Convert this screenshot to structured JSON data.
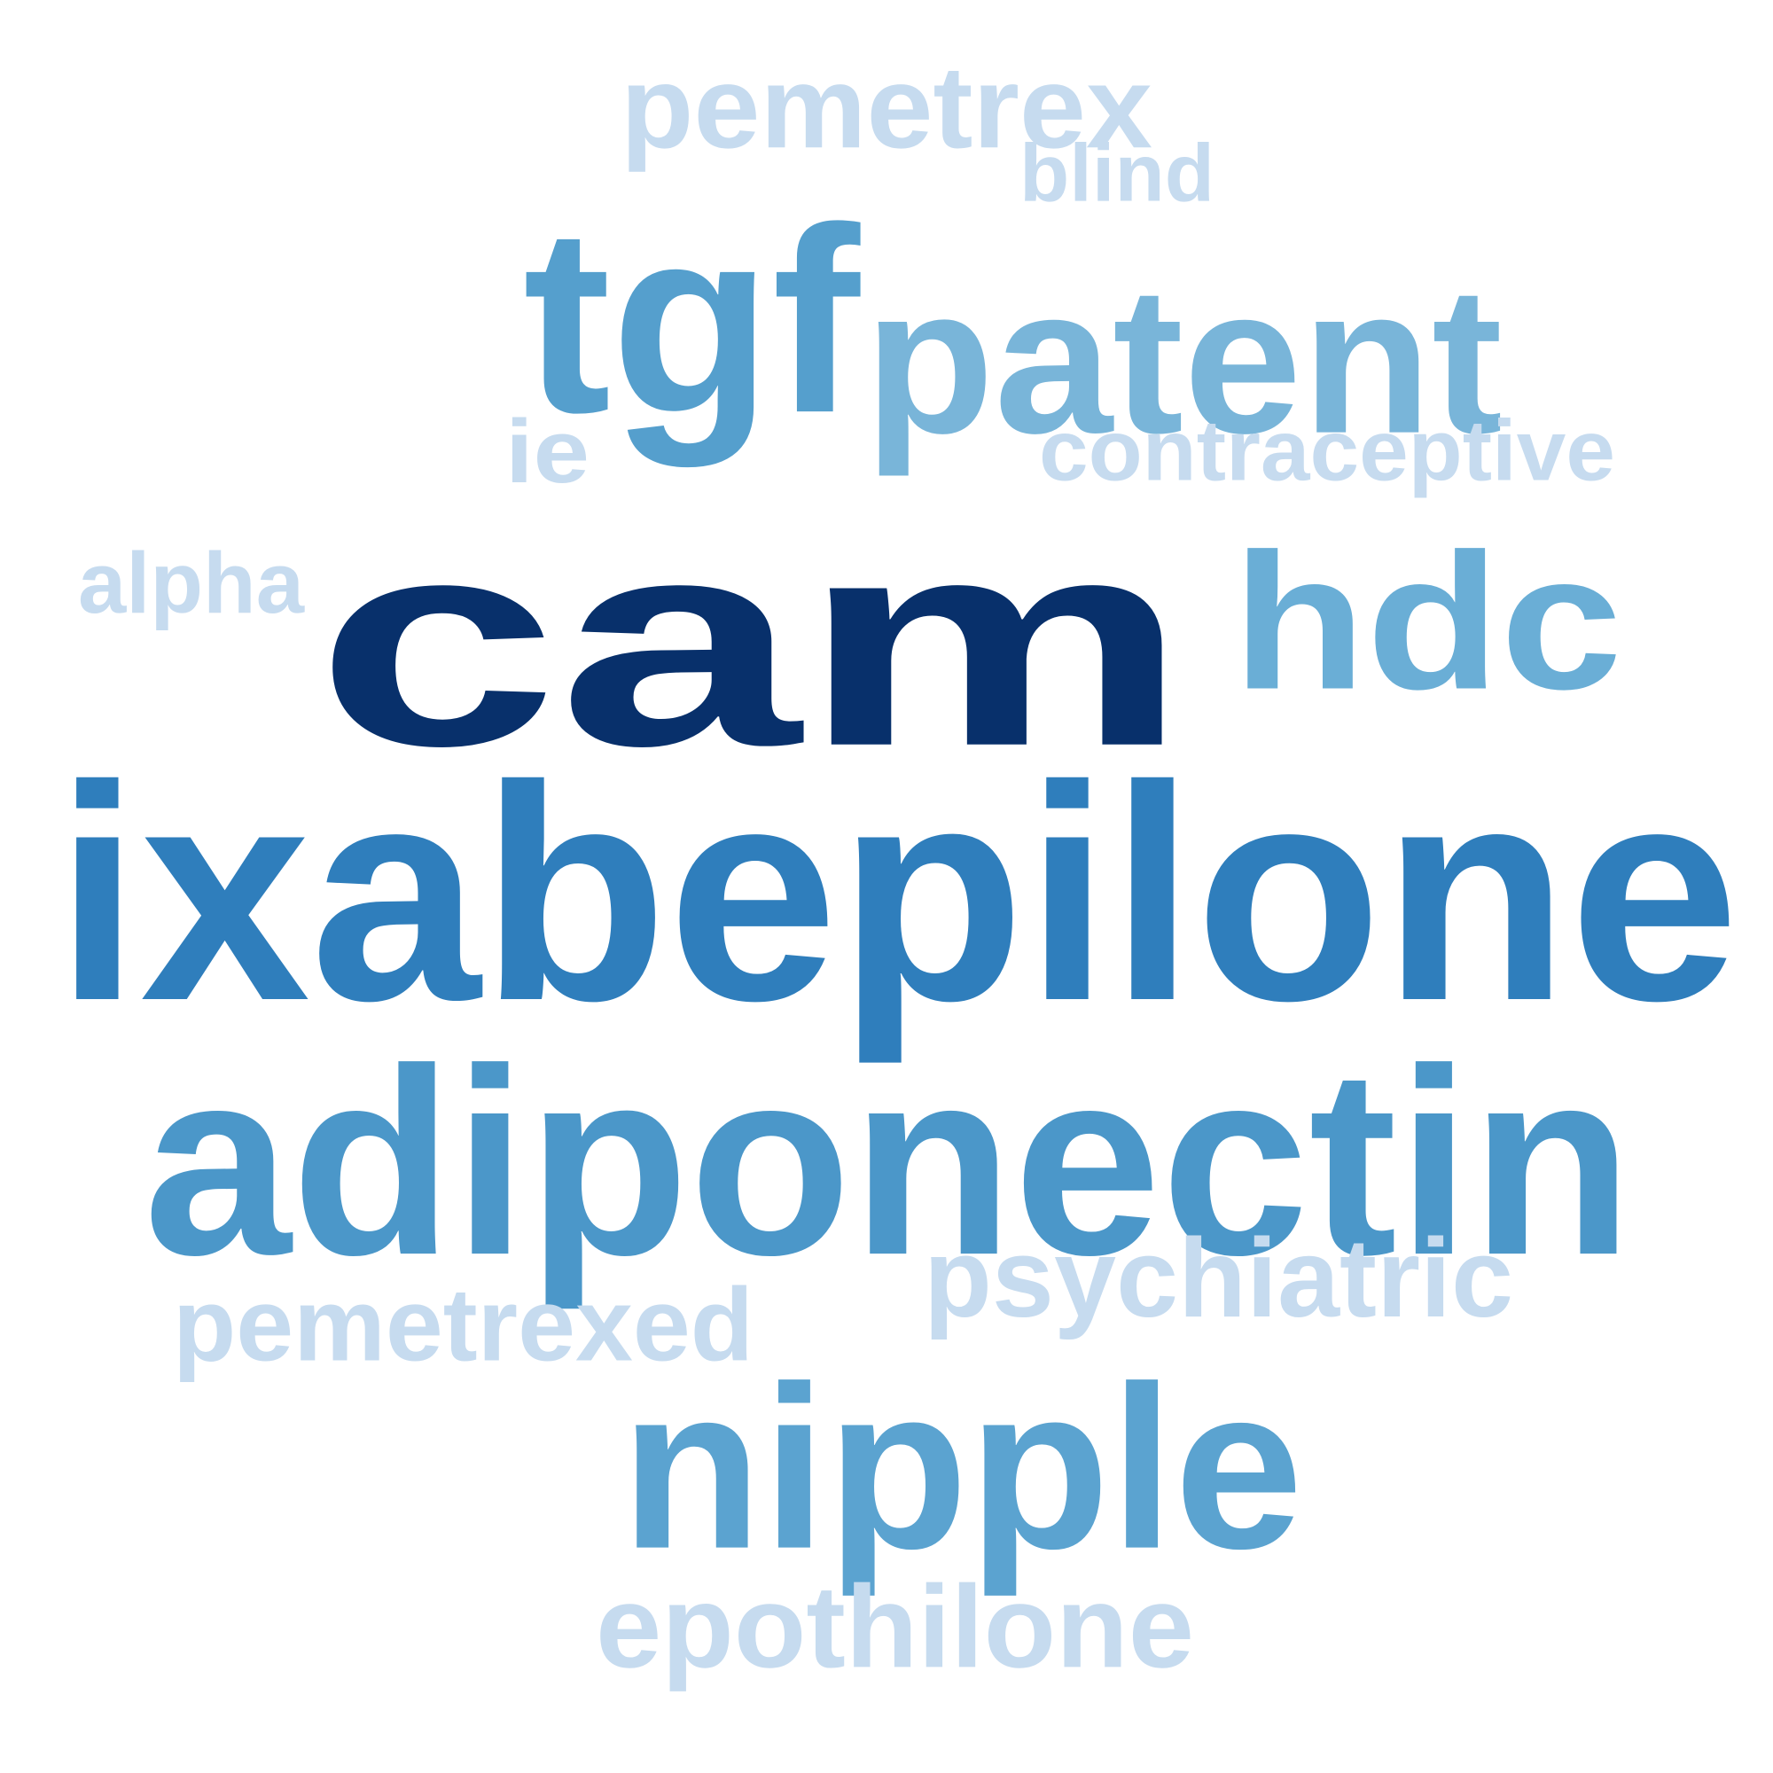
{
  "word_cloud": {
    "words": [
      {
        "text": "cam",
        "color": "#08306b"
      },
      {
        "text": "ixabepilone",
        "color": "#2f7ebc"
      },
      {
        "text": "adiponectin",
        "color": "#4b97c9"
      },
      {
        "text": "nipple",
        "color": "#5ba3d0"
      },
      {
        "text": "tgf",
        "color": "#559fcd"
      },
      {
        "text": "hdc",
        "color": "#6aaed6"
      },
      {
        "text": "patent",
        "color": "#79b5d9"
      },
      {
        "text": "pemetrex",
        "color": "#c6dbef"
      },
      {
        "text": "blind",
        "color": "#c6dbef"
      },
      {
        "text": "contraceptive",
        "color": "#c6dbef"
      },
      {
        "text": "ie",
        "color": "#c6dbef"
      },
      {
        "text": "alpha",
        "color": "#c6dbef"
      },
      {
        "text": "psychiatric",
        "color": "#c6dbef"
      },
      {
        "text": "pemetrexed",
        "color": "#c6dbef"
      },
      {
        "text": "epothilone",
        "color": "#c6dbef"
      }
    ]
  }
}
